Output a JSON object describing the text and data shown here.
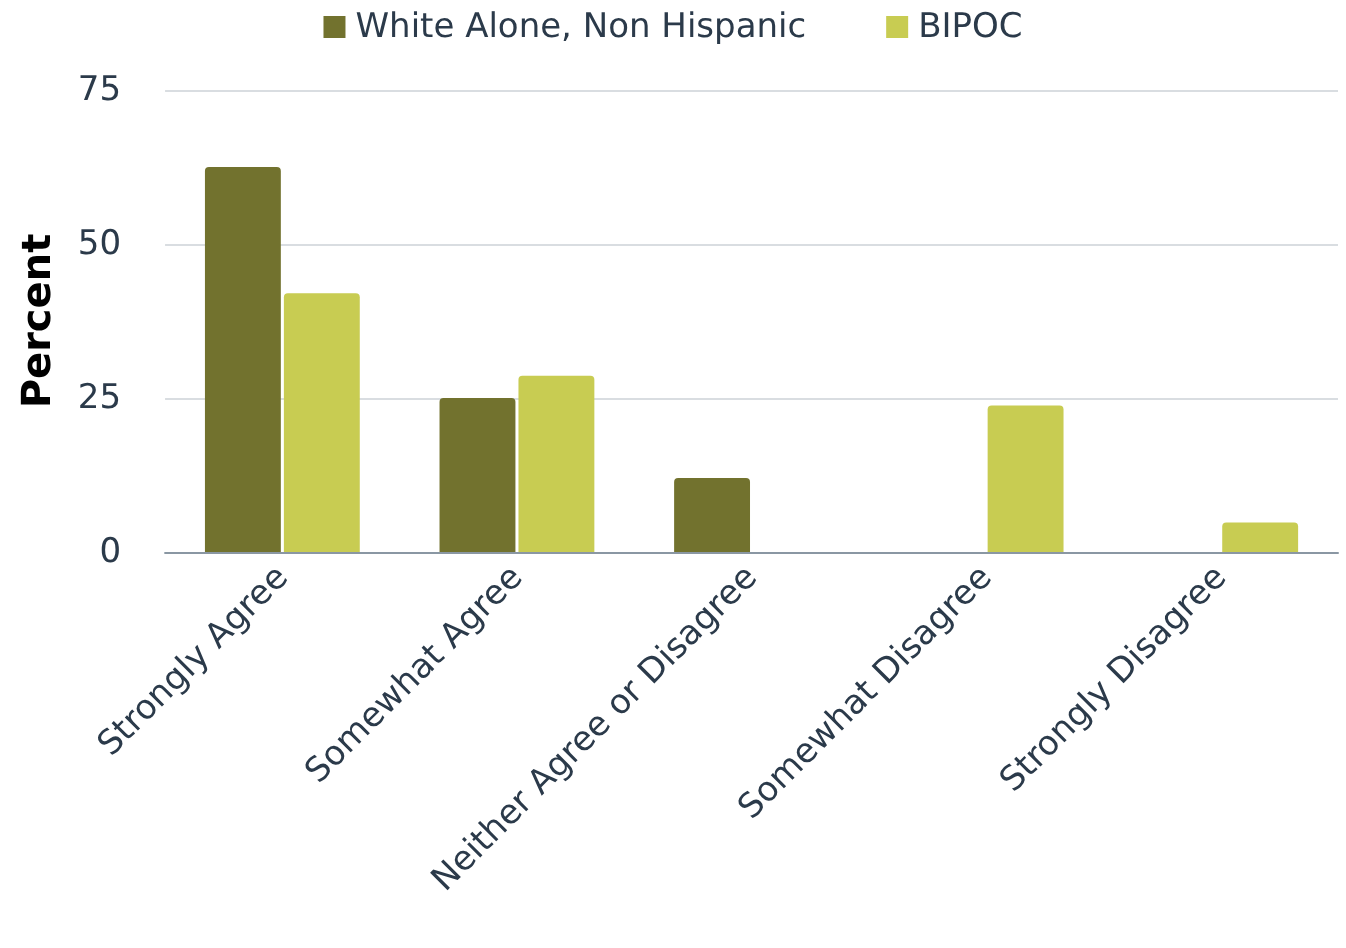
{
  "chart_data": {
    "type": "bar",
    "ylabel": "Percent",
    "categories": [
      "Strongly Agree",
      "Somewhat Agree",
      "Neither Agree or Disagree",
      "Somewhat Disagree",
      "Strongly Disagree"
    ],
    "series": [
      {
        "name": "White Alone, Non Hispanic",
        "color": "#72722e",
        "values": [
          62.5,
          25,
          12,
          0,
          0
        ]
      },
      {
        "name": "BIPOC",
        "color": "#c8cc52",
        "values": [
          42,
          28.6,
          0,
          23.8,
          4.8
        ]
      }
    ],
    "ylim": [
      0,
      75
    ],
    "yticks": [
      0,
      25,
      50,
      75
    ],
    "grid": "y",
    "legend": "top"
  }
}
